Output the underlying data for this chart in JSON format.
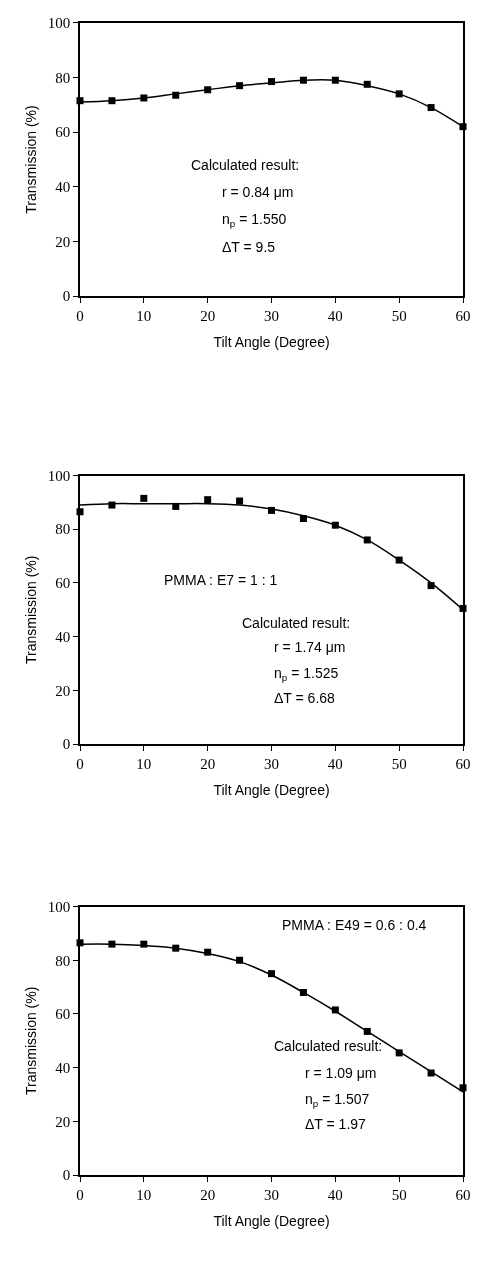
{
  "chart_data": [
    {
      "type": "scatter",
      "xlabel": "Tilt Angle (Degree)",
      "ylabel": "Transmission (%)",
      "xlim": [
        0,
        60
      ],
      "xticks": [
        0,
        10,
        20,
        30,
        40,
        50,
        60
      ],
      "ylim": [
        0,
        100
      ],
      "yticks": [
        0,
        20,
        40,
        60,
        80,
        100
      ],
      "x": [
        0,
        5,
        10,
        15,
        20,
        25,
        30,
        35,
        40,
        45,
        50,
        55,
        60
      ],
      "series": [
        {
          "marker": "square",
          "color": "#000000",
          "values": [
            71.5,
            71.5,
            72.5,
            73.5,
            75.5,
            77,
            78.5,
            79,
            79,
            77.5,
            74,
            69,
            62
          ]
        },
        {
          "type": "line",
          "color": "#000000",
          "values": [
            71,
            71.5,
            72.5,
            74,
            75.5,
            77,
            78,
            79,
            79,
            77,
            74,
            69,
            62
          ]
        }
      ],
      "annotations": [
        "Calculated result:",
        "r = 0.84 μm",
        "n$_{p}$ = 1.550",
        "ΔT = 9.5"
      ]
    },
    {
      "type": "scatter",
      "xlabel": "Tilt Angle (Degree)",
      "ylabel": "Transmission (%)",
      "xlim": [
        0,
        60
      ],
      "xticks": [
        0,
        10,
        20,
        30,
        40,
        50,
        60
      ],
      "ylim": [
        0,
        100
      ],
      "yticks": [
        0,
        20,
        40,
        60,
        80,
        100
      ],
      "x": [
        0,
        5,
        10,
        15,
        20,
        25,
        30,
        35,
        40,
        45,
        50,
        55,
        60
      ],
      "series": [
        {
          "marker": "square",
          "color": "#000000",
          "values": [
            86.5,
            89,
            91.5,
            88.5,
            91,
            90.5,
            87,
            84,
            81.5,
            76,
            68.5,
            59,
            50.5
          ]
        },
        {
          "type": "line",
          "color": "#000000",
          "values": [
            89,
            89.5,
            89.5,
            89.5,
            89.5,
            89,
            87.5,
            85,
            81.5,
            76,
            68.5,
            60,
            50
          ]
        }
      ],
      "annotations": [
        "PMMA : E7 = 1 : 1",
        "Calculated result:",
        "r = 1.74 μm",
        "n$_{p}$ = 1.525",
        "ΔT = 6.68"
      ]
    },
    {
      "type": "scatter",
      "xlabel": "Tilt Angle (Degree)",
      "ylabel": "Transmission (%)",
      "xlim": [
        0,
        60
      ],
      "xticks": [
        0,
        10,
        20,
        30,
        40,
        50,
        60
      ],
      "ylim": [
        0,
        100
      ],
      "yticks": [
        0,
        20,
        40,
        60,
        80,
        100
      ],
      "x": [
        0,
        5,
        10,
        15,
        20,
        25,
        30,
        35,
        40,
        45,
        50,
        55,
        60
      ],
      "series": [
        {
          "marker": "square",
          "color": "#000000",
          "values": [
            86.5,
            86,
            86,
            84.5,
            83,
            80,
            75,
            68,
            61.5,
            53.5,
            45.5,
            38,
            32.5
          ]
        },
        {
          "type": "line",
          "color": "#000000",
          "values": [
            86,
            86,
            85.5,
            84.5,
            82.5,
            79.5,
            74.5,
            68,
            61,
            53.5,
            46,
            38.5,
            31
          ]
        }
      ],
      "annotations": [
        "PMMA : E49 = 0.6 : 0.4",
        "Calculated result:",
        "r = 1.09 μm",
        "n$_{p}$ = 1.507",
        "ΔT = 1.97"
      ]
    }
  ]
}
